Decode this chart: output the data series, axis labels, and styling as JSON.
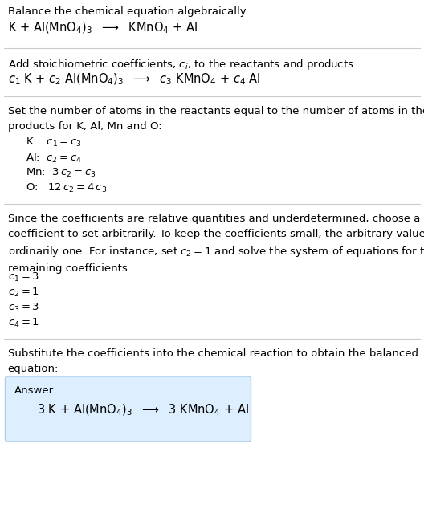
{
  "bg_color": "#ffffff",
  "text_color": "#000000",
  "section1_title": "Balance the chemical equation algebraically:",
  "section1_eq": "K + Al(MnO$_4$)$_3$  $\\longrightarrow$  KMnO$_4$ + Al",
  "section2_title": "Add stoichiometric coefficients, $c_i$, to the reactants and products:",
  "section2_eq": "$c_1$ K + $c_2$ Al(MnO$_4$)$_3$  $\\longrightarrow$  $c_3$ KMnO$_4$ + $c_4$ Al",
  "section3_title": "Set the number of atoms in the reactants equal to the number of atoms in the\nproducts for K, Al, Mn and O:",
  "section3_lines": [
    "K:   $c_1 = c_3$",
    "Al:  $c_2 = c_4$",
    "Mn:  $3\\,c_2 = c_3$",
    "O:   $12\\,c_2 = 4\\,c_3$"
  ],
  "section4_title": "Since the coefficients are relative quantities and underdetermined, choose a\ncoefficient to set arbitrarily. To keep the coefficients small, the arbitrary value is\nordinarily one. For instance, set $c_2 = 1$ and solve the system of equations for the\nremaining coefficients:",
  "section4_lines": [
    "$c_1 = 3$",
    "$c_2 = 1$",
    "$c_3 = 3$",
    "$c_4 = 1$"
  ],
  "section5_title": "Substitute the coefficients into the chemical reaction to obtain the balanced\nequation:",
  "answer_label": "Answer:",
  "answer_eq": "3 K + Al(MnO$_4$)$_3$  $\\longrightarrow$  3 KMnO$_4$ + Al",
  "answer_box_color": "#ddeeff",
  "answer_box_edge_color": "#aaccee",
  "line_color": "#cccccc",
  "fontsize": 9.5,
  "fontsize_eq": 10.5,
  "lm": 0.018,
  "indent": 0.06
}
